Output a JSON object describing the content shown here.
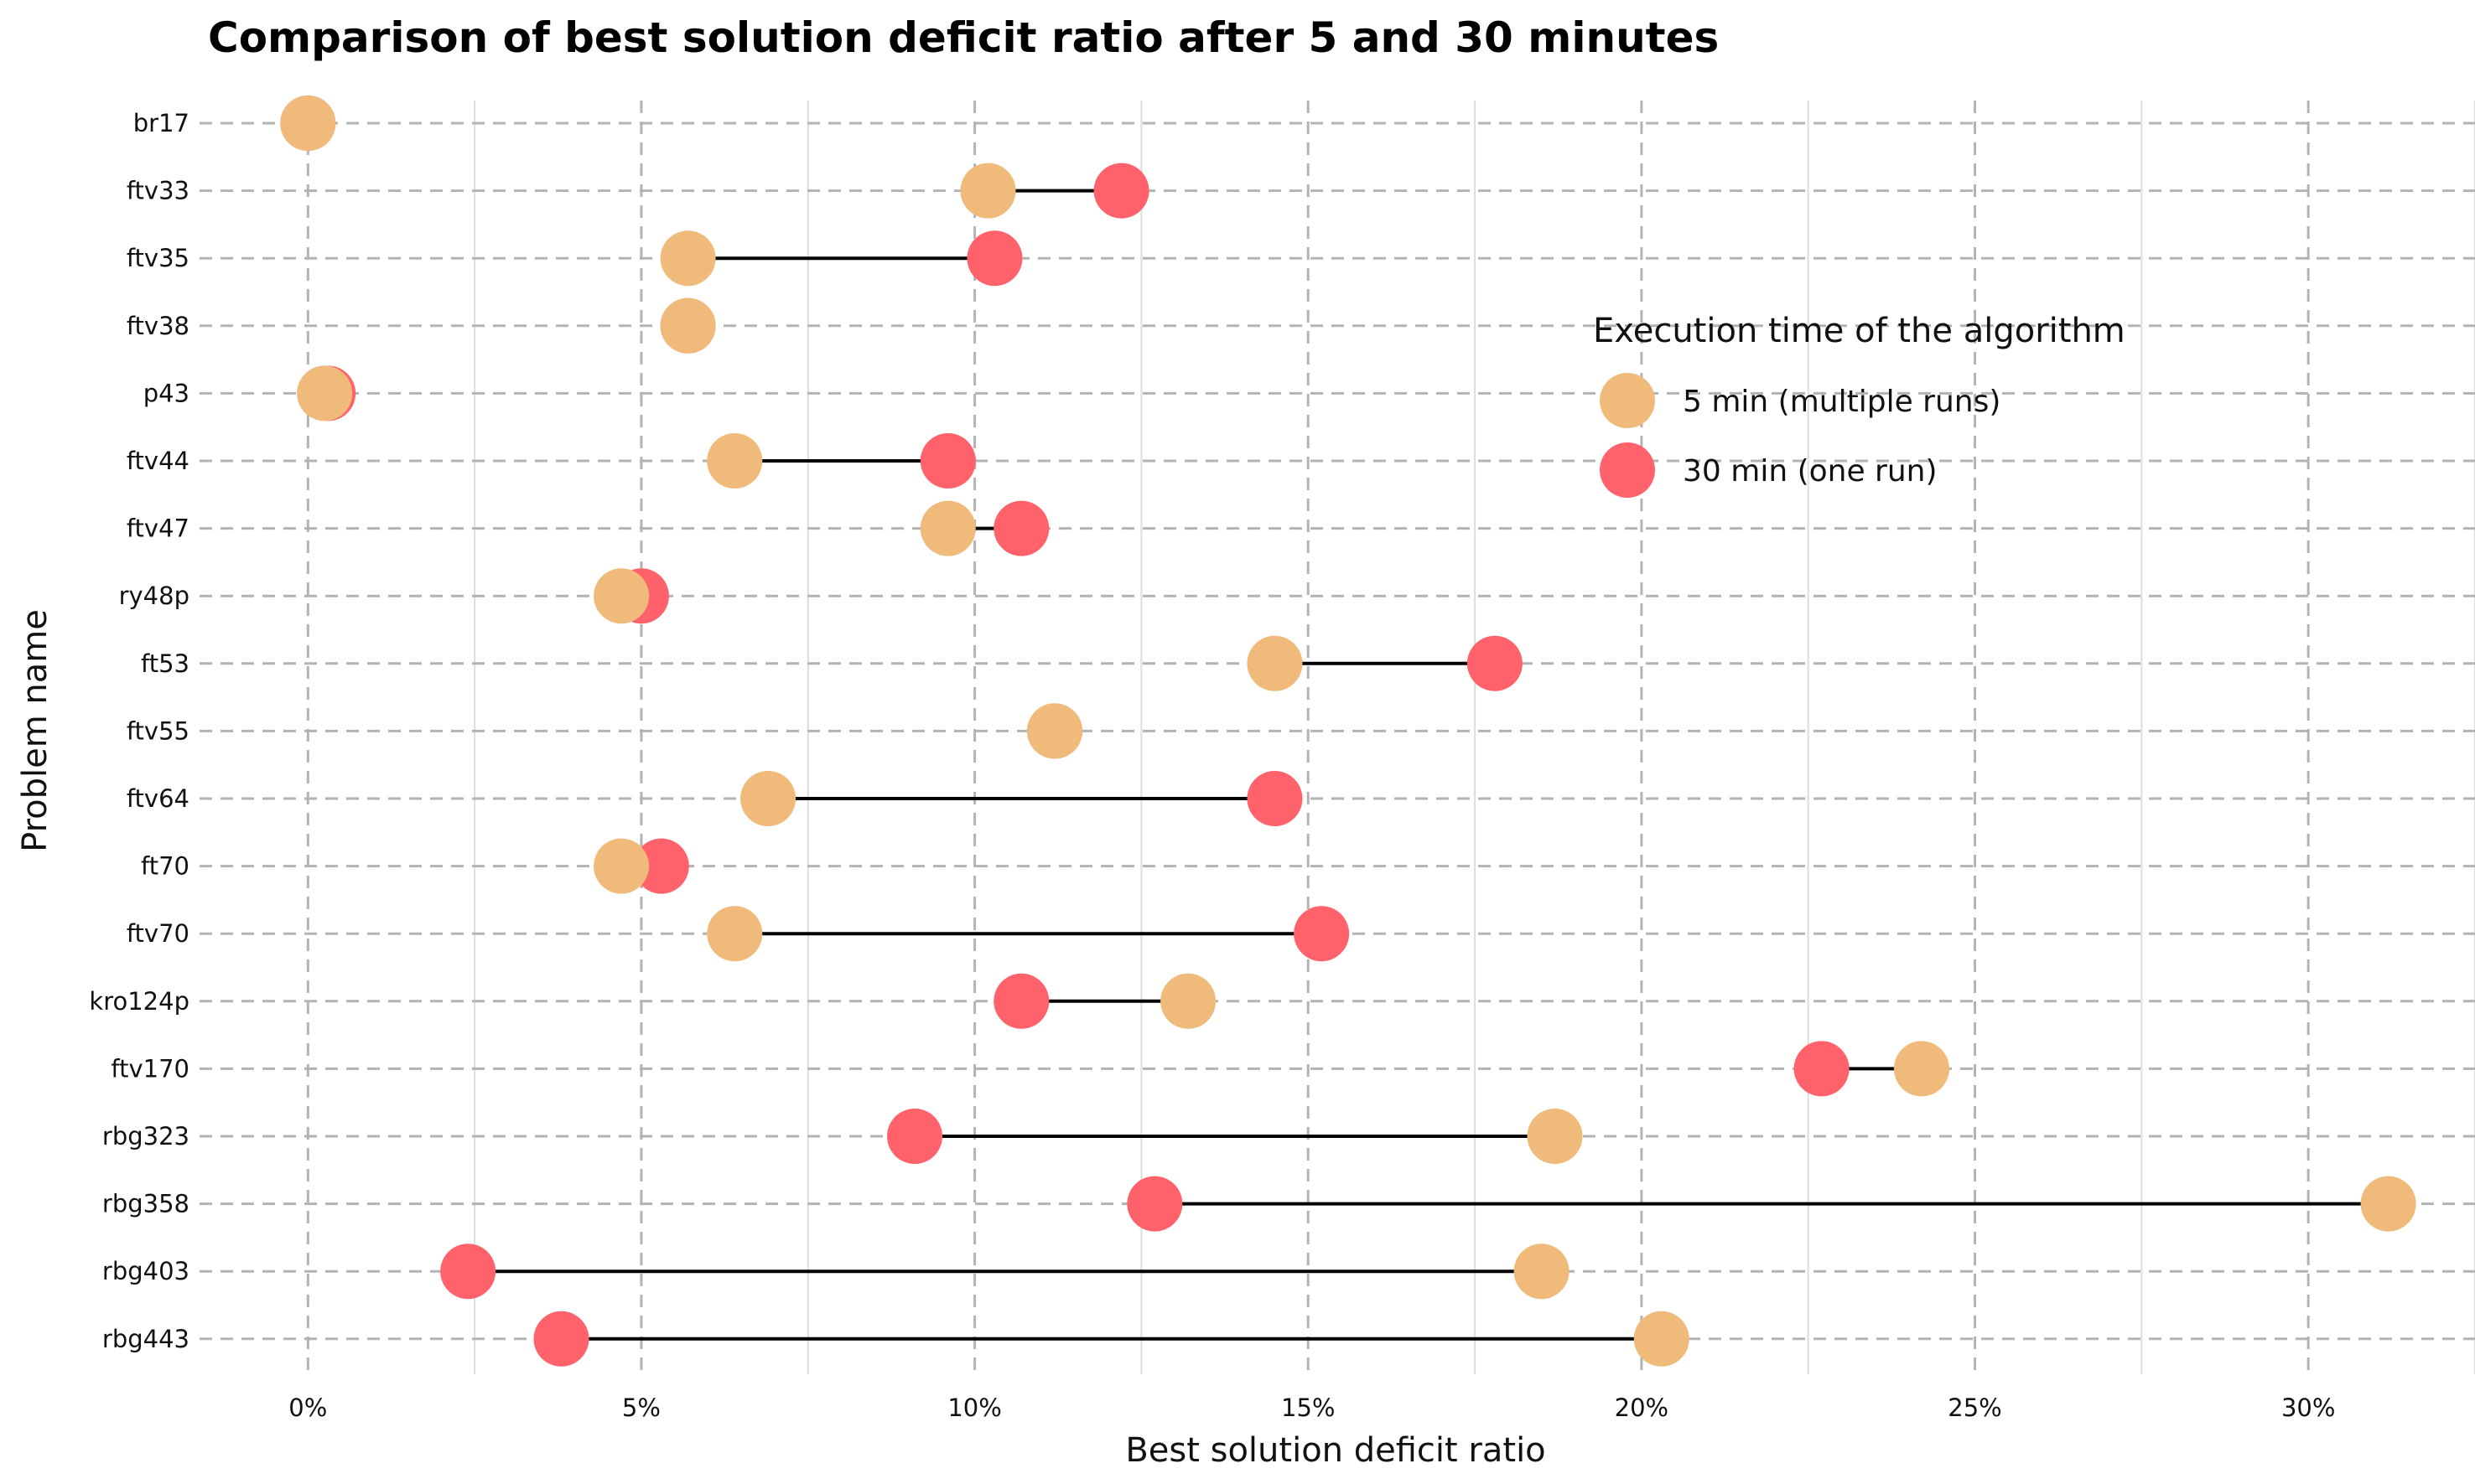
{
  "chart_data": {
    "type": "dumbbell",
    "title": "Comparison of best solution deficit ratio after 5 and 30 minutes",
    "xlabel": "Best solution deficit ratio",
    "ylabel": "Problem name",
    "xlim": [
      -0.015,
      0.325
    ],
    "x_ticks": [
      0,
      0.05,
      0.1,
      0.15,
      0.2,
      0.25,
      0.3
    ],
    "x_tick_labels": [
      "0%",
      "5%",
      "10%",
      "15%",
      "20%",
      "25%",
      "30%"
    ],
    "x_minor_ticks": [
      0.025,
      0.075,
      0.125,
      0.175,
      0.225,
      0.275,
      0.325
    ],
    "categories": [
      "br17",
      "ftv33",
      "ftv35",
      "ftv38",
      "p43",
      "ftv44",
      "ftv47",
      "ry48p",
      "ft53",
      "ftv55",
      "ftv64",
      "ft70",
      "ftv70",
      "kro124p",
      "ftv170",
      "rbg323",
      "rbg358",
      "rbg403",
      "rbg443"
    ],
    "series": [
      {
        "name": "5 min (multiple runs)",
        "color": "#F0BA7A",
        "values": [
          0.0,
          0.102,
          0.057,
          0.057,
          0.0025,
          0.064,
          0.096,
          0.047,
          0.145,
          0.112,
          0.069,
          0.047,
          0.064,
          0.132,
          0.242,
          0.187,
          0.312,
          0.185,
          0.203
        ]
      },
      {
        "name": "30 min (one run)",
        "color": "#FF626A",
        "values": [
          0.0,
          0.122,
          0.103,
          0.057,
          0.003,
          0.096,
          0.107,
          0.05,
          0.178,
          0.112,
          0.145,
          0.053,
          0.152,
          0.107,
          0.227,
          0.091,
          0.127,
          0.024,
          0.038
        ]
      }
    ],
    "legend": {
      "title": "Execution time of the algorithm",
      "placement": "right"
    },
    "grid": true
  }
}
